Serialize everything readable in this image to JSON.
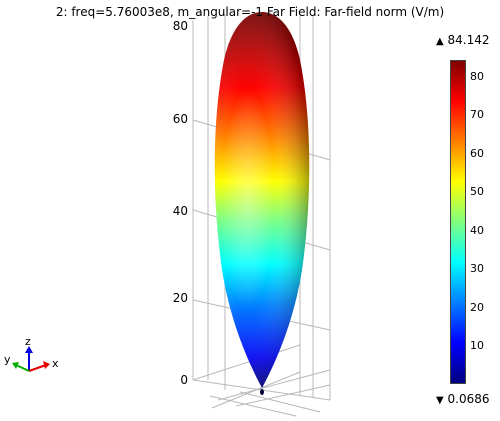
{
  "title": "2: freq=5.76003e8, m_angular=-1   Far Field: Far-field norm (V/m)",
  "axis": {
    "y_ticks": [
      "80",
      "60",
      "40",
      "20",
      "0"
    ]
  },
  "colorbar": {
    "max_symbol": "▲",
    "max_value": "84.142",
    "min_symbol": "▼",
    "min_value": "0.0686",
    "ticks": [
      "80",
      "70",
      "60",
      "50",
      "40",
      "30",
      "20",
      "10"
    ],
    "colormap": [
      "#00007f",
      "#0000ff",
      "#007fff",
      "#00ffff",
      "#7fff7f",
      "#ffff00",
      "#ff7f00",
      "#ff0000",
      "#7f0000"
    ]
  },
  "triad": {
    "x_label": "x",
    "y_label": "y",
    "z_label": "z",
    "x_color": "#e00000",
    "y_color": "#00b000",
    "z_color": "#0000e0"
  }
}
